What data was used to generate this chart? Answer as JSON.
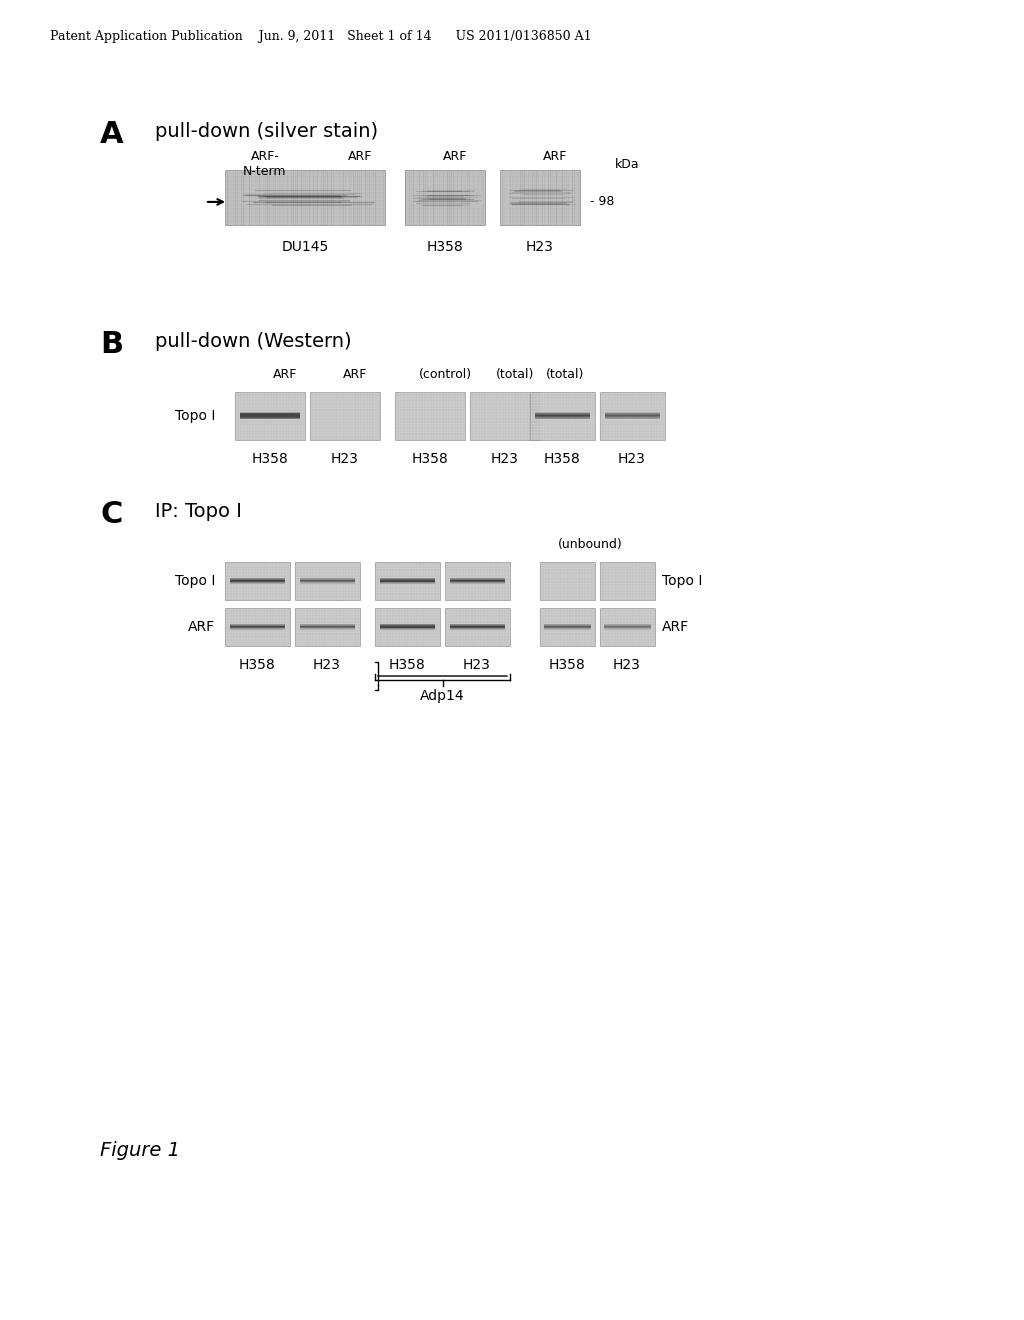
{
  "bg_color": "#ffffff",
  "header_text": "Patent Application Publication    Jun. 9, 2011   Sheet 1 of 14      US 2011/0136850 A1",
  "figure_label": "Figure 1",
  "panel_A": {
    "label": "A",
    "title": "pull-down (silver stain)",
    "col_labels": [
      "ARF-\nN-term",
      "ARF",
      "ARF",
      "ARF"
    ],
    "kda_label": "kDa",
    "kda_value": "- 98",
    "row_labels": [
      "DU145",
      "H358",
      "H23"
    ],
    "arrow_text": "→"
  },
  "panel_B": {
    "label": "B",
    "title": "pull-down (Western)",
    "group_labels_top": [
      "ARF",
      "ARF",
      "(control)",
      "(total)"
    ],
    "row_label": "Topo I",
    "col_labels_bottom": [
      "H358",
      "H23",
      "H358",
      "H23",
      "H358",
      "H23"
    ]
  },
  "panel_C": {
    "label": "C",
    "title": "IP: Topo I",
    "row_labels": [
      "Topo I",
      "ARF"
    ],
    "col_labels_bottom": [
      "H358",
      "H23",
      "H358",
      "H23",
      "H358",
      "H23"
    ],
    "unbound_label": "(unbound)",
    "side_labels": [
      "Topo I",
      "ARF"
    ],
    "adp14_label": "Adp14",
    "adp14_cols": [
      "H358",
      "H23"
    ]
  }
}
